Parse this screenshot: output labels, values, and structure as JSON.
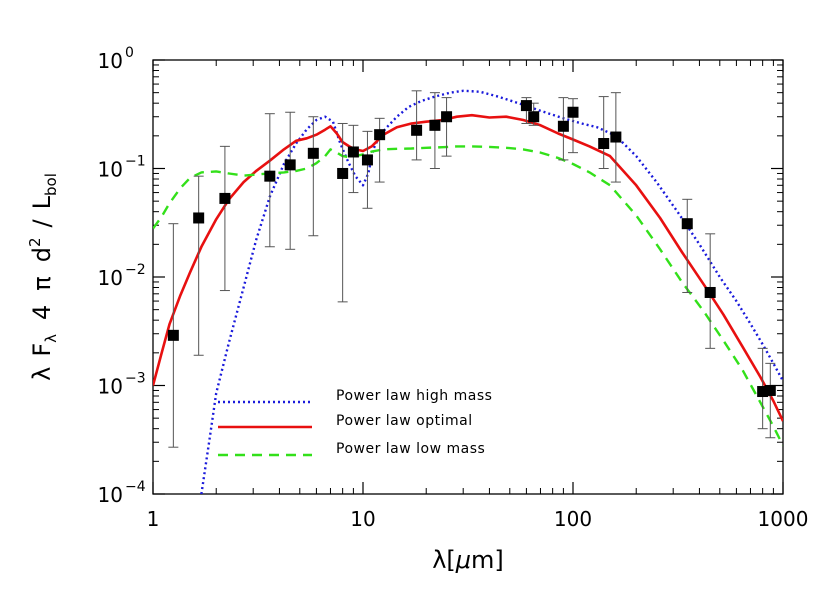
{
  "chart_data": {
    "type": "line",
    "x_scale": "log",
    "y_scale": "log",
    "xlim": [
      1,
      1000
    ],
    "ylim": [
      0.0001,
      1
    ],
    "grid": false,
    "legend_position": "bottom-left",
    "x_ticks": [
      {
        "value": 1,
        "label": "1"
      },
      {
        "value": 10,
        "label": "10"
      },
      {
        "value": 100,
        "label": "100"
      },
      {
        "value": 1000,
        "label": "1000"
      }
    ],
    "y_ticks": [
      {
        "value": 0.0001,
        "base": "10",
        "exp": "−4"
      },
      {
        "value": 0.001,
        "base": "10",
        "exp": "−3"
      },
      {
        "value": 0.01,
        "base": "10",
        "exp": "−2"
      },
      {
        "value": 0.1,
        "base": "10",
        "exp": "−1"
      },
      {
        "value": 1,
        "base": "10",
        "exp": "0"
      }
    ],
    "xlabel": {
      "pre": "λ[",
      "mu": "μ",
      "post": "m]"
    },
    "ylabel": {
      "lambda": "λ",
      "F": "F",
      "F_sub": "λ",
      "four": "4",
      "pi": "π",
      "d": "d",
      "d_sup": "2",
      "slash": "/",
      "L": "L",
      "L_sub": "bol"
    },
    "series": [
      {
        "name": "Power law high mass",
        "color": "#1a1adb",
        "dash": "dotted",
        "x": [
          1.7,
          1.85,
          2.0,
          2.3,
          2.7,
          3.1,
          3.6,
          4.2,
          4.8,
          5.4,
          6.0,
          6.6,
          7.2,
          7.8,
          8.5,
          9.2,
          10.0,
          10.6,
          11.2,
          12.0,
          13.0,
          14.5,
          16.5,
          19.0,
          22.0,
          26.0,
          30.0,
          36.0,
          44.0,
          55.0,
          70.0,
          90.0,
          110.0,
          130.0,
          160.0,
          200.0,
          250.0,
          320.0,
          400.0,
          500.0,
          600.0,
          700.0,
          800.0,
          900.0,
          1000.0
        ],
        "y": [
          0.0001,
          0.0003,
          0.00085,
          0.0025,
          0.008,
          0.022,
          0.055,
          0.11,
          0.17,
          0.23,
          0.28,
          0.3,
          0.27,
          0.17,
          0.115,
          0.085,
          0.07,
          0.09,
          0.15,
          0.2,
          0.24,
          0.3,
          0.37,
          0.42,
          0.46,
          0.5,
          0.52,
          0.51,
          0.46,
          0.4,
          0.34,
          0.29,
          0.26,
          0.24,
          0.2,
          0.13,
          0.075,
          0.038,
          0.02,
          0.01,
          0.006,
          0.0037,
          0.0024,
          0.0016,
          0.0011
        ]
      },
      {
        "name": "Power law optimal",
        "color": "#e81010",
        "dash": "solid",
        "x": [
          1.0,
          1.1,
          1.2,
          1.35,
          1.5,
          1.7,
          2.0,
          2.3,
          2.7,
          3.1,
          3.6,
          4.2,
          4.8,
          5.4,
          6.0,
          6.6,
          7.0,
          7.5,
          8.0,
          8.6,
          9.2,
          10.0,
          11.0,
          12.5,
          14.5,
          17.0,
          20.0,
          24.0,
          28.0,
          33.0,
          40.0,
          48.0,
          58.0,
          70.0,
          85.0,
          100.0,
          120.0,
          150.0,
          200.0,
          260.0,
          330.0,
          420.0,
          520.0,
          640.0,
          780.0,
          900.0,
          1000.0
        ],
        "y": [
          0.001,
          0.002,
          0.0037,
          0.0068,
          0.011,
          0.019,
          0.034,
          0.052,
          0.075,
          0.095,
          0.118,
          0.15,
          0.18,
          0.19,
          0.205,
          0.228,
          0.245,
          0.21,
          0.175,
          0.16,
          0.15,
          0.145,
          0.16,
          0.205,
          0.24,
          0.26,
          0.27,
          0.28,
          0.3,
          0.31,
          0.295,
          0.3,
          0.28,
          0.25,
          0.21,
          0.185,
          0.16,
          0.13,
          0.07,
          0.035,
          0.017,
          0.0085,
          0.0045,
          0.0023,
          0.0012,
          0.00072,
          0.00047
        ]
      },
      {
        "name": "Power law low mass",
        "color": "#33e01a",
        "dash": "dashed",
        "x": [
          1.0,
          1.1,
          1.2,
          1.35,
          1.5,
          1.7,
          2.0,
          2.3,
          2.7,
          3.1,
          3.6,
          4.2,
          4.8,
          5.4,
          6.0,
          6.6,
          7.0,
          7.5,
          8.0,
          8.6,
          9.2,
          10.0,
          11.0,
          12.5,
          14.5,
          17.0,
          20.0,
          24.0,
          28.0,
          33.0,
          40.0,
          48.0,
          58.0,
          70.0,
          85.0,
          100.0,
          120.0,
          150.0,
          200.0,
          260.0,
          330.0,
          420.0,
          520.0,
          640.0,
          780.0,
          900.0,
          1000.0
        ],
        "y": [
          0.028,
          0.036,
          0.048,
          0.066,
          0.082,
          0.092,
          0.094,
          0.09,
          0.086,
          0.088,
          0.09,
          0.092,
          0.095,
          0.1,
          0.112,
          0.13,
          0.15,
          0.14,
          0.13,
          0.127,
          0.13,
          0.135,
          0.143,
          0.15,
          0.152,
          0.153,
          0.155,
          0.157,
          0.16,
          0.16,
          0.158,
          0.155,
          0.15,
          0.14,
          0.125,
          0.11,
          0.092,
          0.07,
          0.037,
          0.018,
          0.009,
          0.0048,
          0.0026,
          0.0014,
          0.0007,
          0.00042,
          0.00028
        ]
      }
    ],
    "observed": {
      "points": [
        {
          "x": 1.25,
          "y": 0.0029,
          "lo": 0.00027,
          "hi": 0.031
        },
        {
          "x": 1.65,
          "y": 0.035,
          "lo": 0.0019,
          "hi": 0.085
        },
        {
          "x": 2.2,
          "y": 0.053,
          "lo": 0.0075,
          "hi": 0.16
        },
        {
          "x": 3.6,
          "y": 0.085,
          "lo": 0.019,
          "hi": 0.32
        },
        {
          "x": 4.5,
          "y": 0.108,
          "lo": 0.018,
          "hi": 0.33
        },
        {
          "x": 5.8,
          "y": 0.138,
          "lo": 0.024,
          "hi": 0.3
        },
        {
          "x": 8.0,
          "y": 0.09,
          "lo": 0.0059,
          "hi": 0.26
        },
        {
          "x": 9.0,
          "y": 0.142,
          "lo": 0.06,
          "hi": 0.25
        },
        {
          "x": 10.5,
          "y": 0.12,
          "lo": 0.043,
          "hi": 0.22
        },
        {
          "x": 12.0,
          "y": 0.205,
          "lo": 0.075,
          "hi": 0.29
        },
        {
          "x": 18.0,
          "y": 0.225,
          "lo": 0.12,
          "hi": 0.52
        },
        {
          "x": 22.0,
          "y": 0.25,
          "lo": 0.1,
          "hi": 0.5
        },
        {
          "x": 25.0,
          "y": 0.3,
          "lo": 0.13,
          "hi": 0.45
        },
        {
          "x": 60.0,
          "y": 0.38,
          "lo": 0.26,
          "hi": 0.45
        },
        {
          "x": 65.0,
          "y": 0.3,
          "lo": 0.25,
          "hi": 0.4
        },
        {
          "x": 90.0,
          "y": 0.245,
          "lo": 0.12,
          "hi": 0.45
        },
        {
          "x": 100.0,
          "y": 0.33,
          "lo": 0.14,
          "hi": 0.44
        },
        {
          "x": 140.0,
          "y": 0.17,
          "lo": 0.1,
          "hi": 0.46
        },
        {
          "x": 160.0,
          "y": 0.195,
          "lo": 0.075,
          "hi": 0.5
        },
        {
          "x": 350.0,
          "y": 0.031,
          "lo": 0.0072,
          "hi": 0.052
        },
        {
          "x": 450.0,
          "y": 0.0072,
          "lo": 0.0022,
          "hi": 0.025
        },
        {
          "x": 800.0,
          "y": 0.00088,
          "lo": 0.0004,
          "hi": 0.0022
        },
        {
          "x": 870.0,
          "y": 0.0009,
          "lo": 0.00033,
          "hi": 0.0016
        }
      ]
    }
  }
}
